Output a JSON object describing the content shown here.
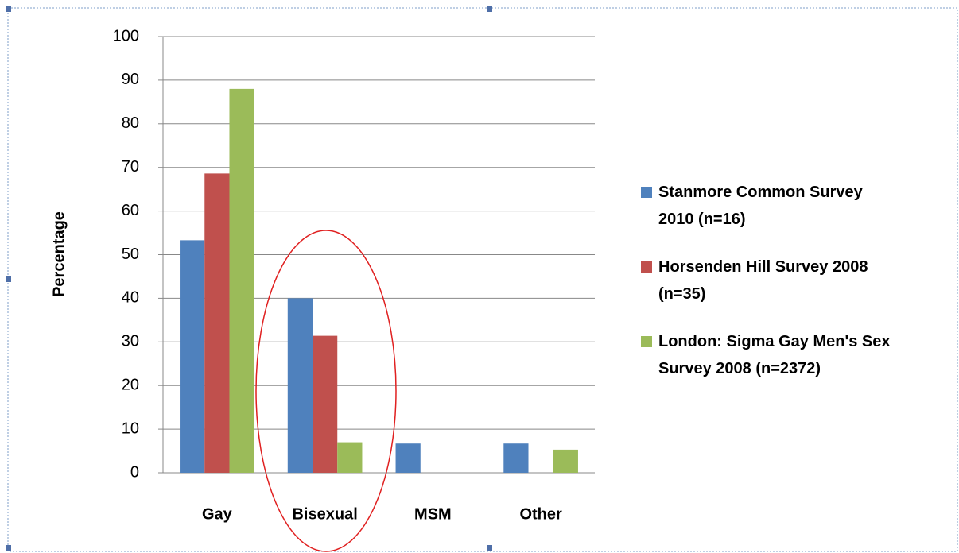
{
  "chart_data": {
    "type": "bar",
    "y_label": "Percentage",
    "categories": [
      "Gay",
      "Bisexual",
      "MSM",
      "Other"
    ],
    "series": [
      {
        "name": "Stanmore Common Survey 2010 (n=16)",
        "color": "#4f81bd",
        "values": [
          53.3,
          40,
          6.7,
          6.7
        ]
      },
      {
        "name": "Horsenden Hill Survey 2008 (n=35)",
        "color": "#c0504d",
        "values": [
          68.6,
          31.4,
          0,
          0
        ]
      },
      {
        "name": "London: Sigma Gay Men's Sex Survey 2008 (n=2372)",
        "color": "#9bbb59",
        "values": [
          88,
          7,
          0,
          5.3
        ]
      }
    ],
    "ylim": [
      0,
      100
    ],
    "yticks": [
      0,
      10,
      20,
      30,
      40,
      50,
      60,
      70,
      80,
      90,
      100
    ],
    "grid": true
  }
}
